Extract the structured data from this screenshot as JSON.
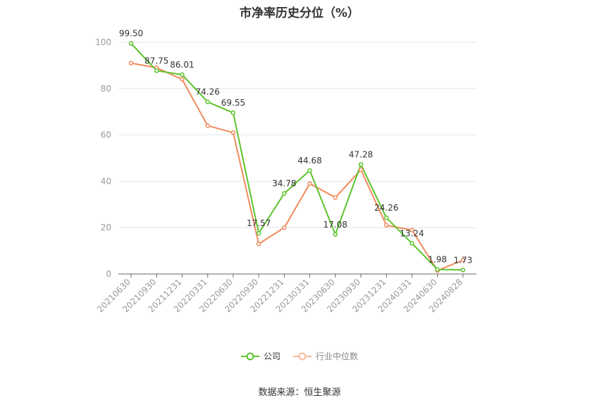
{
  "chart_data": {
    "type": "line",
    "title": "市净率历史分位（%）",
    "categories": [
      "20210630",
      "20210930",
      "20211231",
      "20220331",
      "20220630",
      "20220930",
      "20221231",
      "20230331",
      "20230630",
      "20230930",
      "20231231",
      "20240331",
      "20240630",
      "20240828"
    ],
    "series": [
      {
        "name": "公司",
        "color": "#5cc42b",
        "values": [
          99.5,
          87.75,
          86.01,
          74.26,
          69.55,
          17.57,
          34.78,
          44.68,
          17.08,
          47.28,
          24.26,
          13.24,
          1.98,
          1.73
        ],
        "labels": [
          "99.50",
          "87.75",
          "86.01",
          "74.26",
          "69.55",
          "17.57",
          "34.78",
          "44.68",
          "17.08",
          "47.28",
          "24.26",
          "13.24",
          "1.98",
          "1.73"
        ]
      },
      {
        "name": "行业中位数",
        "color": "#f08a5d",
        "values": [
          91,
          89,
          84,
          64,
          61,
          13,
          20,
          39,
          33,
          45,
          21,
          19,
          1.5,
          6
        ]
      }
    ],
    "ylim": [
      0,
      100
    ],
    "yticks": [
      0,
      20,
      40,
      60,
      80,
      100
    ],
    "grid": true,
    "legend_position": "bottom"
  },
  "source": "数据来源：恒生聚源"
}
